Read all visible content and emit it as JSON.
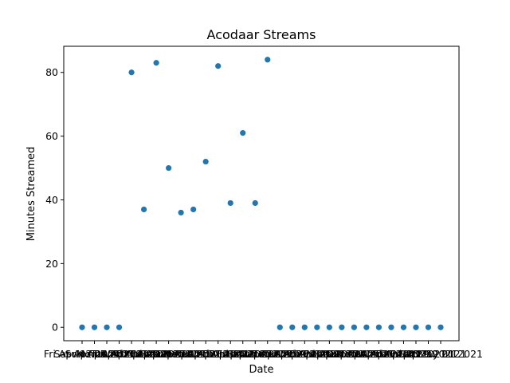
{
  "chart_data": {
    "type": "scatter",
    "title": "Acodaar Streams",
    "xlabel": "Date",
    "ylabel": "Minutes Streamed",
    "x": [
      "Fri Apr 02 2021",
      "Sat Apr 03 2021",
      "Sun Apr 04 2021",
      "Mon Apr 05 2021",
      "Tue Apr 06 2021",
      "Wed Apr 07 2021",
      "Thu Apr 08 2021",
      "Fri Apr 09 2021",
      "Sat Apr 10 2021",
      "Sun Apr 11 2021",
      "Mon Apr 12 2021",
      "Tue Apr 13 2021",
      "Wed Apr 14 2021",
      "Thu Apr 15 2021",
      "Fri Apr 16 2021",
      "Sat Apr 17 2021",
      "Sun Apr 18 2021",
      "Mon Apr 19 2021",
      "Tue Apr 20 2021",
      "Wed Apr 21 2021",
      "Thu Apr 22 2021",
      "Fri Apr 23 2021",
      "Sat Apr 24 2021",
      "Sun Apr 25 2021",
      "Mon Apr 26 2021",
      "Tue Apr 27 2021",
      "Wed Apr 28 2021",
      "Thu Apr 29 2021",
      "Fri Apr 30 2021",
      "Sat May 01 2021"
    ],
    "y": [
      0,
      0,
      0,
      0,
      80,
      37,
      83,
      50,
      36,
      37,
      52,
      82,
      39,
      61,
      39,
      84,
      0,
      0,
      0,
      0,
      0,
      0,
      0,
      0,
      0,
      0,
      0,
      0,
      0,
      0
    ],
    "yticks": [
      0,
      20,
      40,
      60,
      80
    ],
    "ylim": [
      -4.2,
      88.2
    ],
    "grid": false,
    "marker_color": "#1f77b4"
  }
}
